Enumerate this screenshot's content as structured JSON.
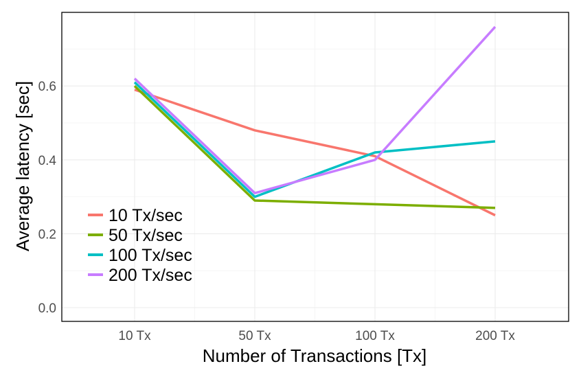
{
  "chart_data": {
    "type": "line",
    "title": "",
    "xlabel": "Number of Transactions [Tx]",
    "ylabel": "Average latency [sec]",
    "categories": [
      "10 Tx",
      "50 Tx",
      "100 Tx",
      "200 Tx"
    ],
    "ylim": [
      -0.03,
      0.76
    ],
    "yticks": [
      0.0,
      0.2,
      0.4,
      0.6
    ],
    "yticks_labels": [
      "0.0",
      "0.2",
      "0.4",
      "0.6"
    ],
    "grid": true,
    "legend_position": "bottom-left",
    "series": [
      {
        "name": "10 Tx/sec",
        "color": "#F8766D",
        "values": [
          0.59,
          0.48,
          0.41,
          0.25
        ]
      },
      {
        "name": "50 Tx/sec",
        "color": "#7CAE00",
        "values": [
          0.6,
          0.29,
          0.28,
          0.27
        ]
      },
      {
        "name": "100 Tx/sec",
        "color": "#00BFC4",
        "values": [
          0.61,
          0.3,
          0.42,
          0.45
        ]
      },
      {
        "name": "200 Tx/sec",
        "color": "#C77CFF",
        "values": [
          0.62,
          0.31,
          0.4,
          0.76
        ]
      }
    ]
  }
}
